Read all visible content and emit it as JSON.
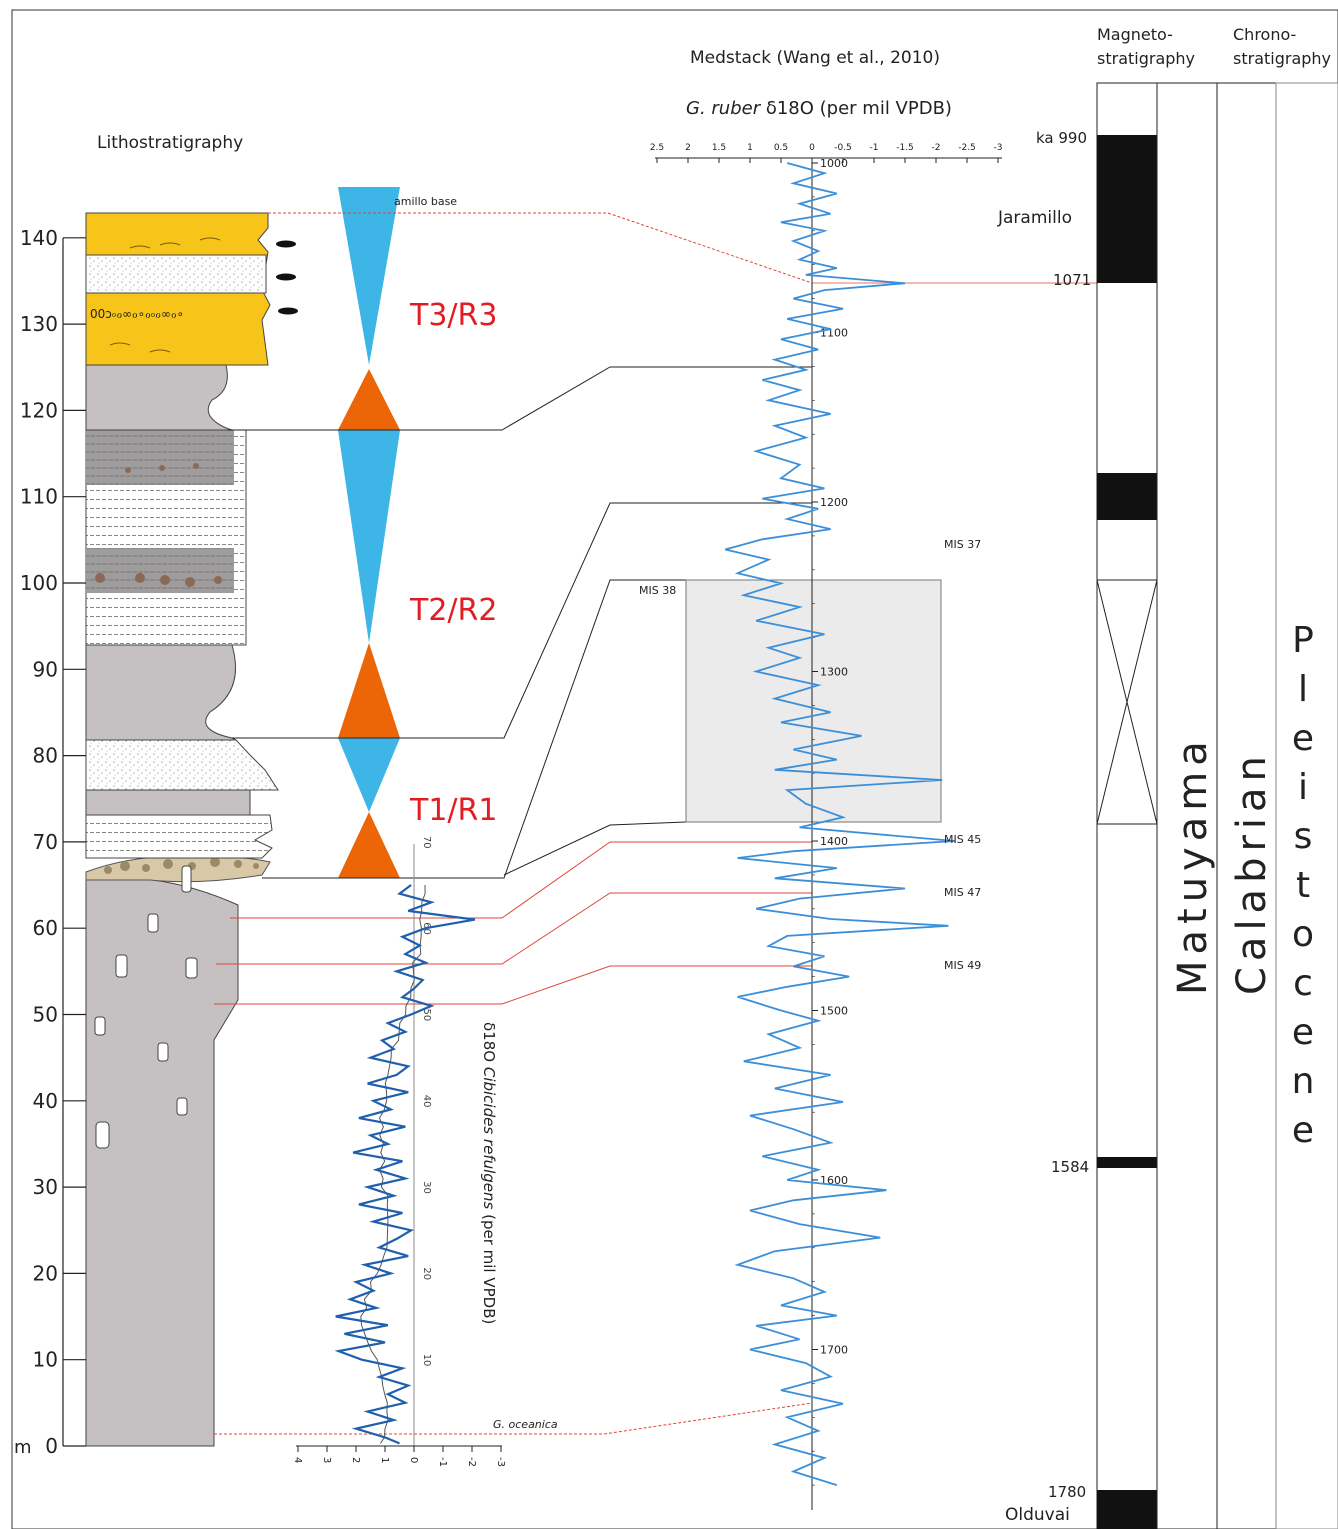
{
  "titles": {
    "lithostratigraphy": "Lithostratigraphy",
    "medstack": "Medstack (Wang et al., 2010)",
    "gruber_italic": "G. ruber",
    "gruber_rest": " δ18O (per mil VPDB)",
    "magneto_1": "Magneto-",
    "magneto_2": "stratigraphy",
    "chrono_1": "Chrono-",
    "chrono_2": "stratigraphy",
    "cib_label_1": "δ18O ",
    "cib_label_italic": "Cibicides refulgens",
    "cib_label_2": " (per mil VPDB)"
  },
  "depth_axis": {
    "unit": "m",
    "ticks": [
      "0",
      "10",
      "20",
      "30",
      "40",
      "50",
      "60",
      "70",
      "80",
      "90",
      "100",
      "110",
      "120",
      "130",
      "140"
    ]
  },
  "sequences": [
    "T3/R3",
    "T2/R2",
    "T1/R1"
  ],
  "jaramillo_base_label": "amillo base",
  "ruber_axis": {
    "ticks": [
      "2.5",
      "2",
      "1.5",
      "1",
      "0.5",
      "0",
      "-0.5",
      "-1",
      "-1.5",
      "-2",
      "-2.5",
      "-3"
    ],
    "age_ticks": [
      "1000",
      "1100",
      "1200",
      "1300",
      "1400",
      "1500",
      "1600",
      "1700"
    ]
  },
  "mis_labels": [
    "MIS 37",
    "MIS 38",
    "MIS 45",
    "MIS 47",
    "MIS 49"
  ],
  "cib_axis": {
    "value_ticks": [
      "4",
      "3",
      "2",
      "1",
      "0",
      "-1",
      "-2",
      "-3"
    ],
    "depth_ticks": [
      "10",
      "20",
      "30",
      "40",
      "50",
      "60",
      "70"
    ]
  },
  "goceanica": "G. oceanica",
  "magneto": {
    "labels": {
      "ka990": "ka 990",
      "jaramillo": "Jaramillo",
      "a1071": "1071",
      "a1584": "1584",
      "a1780": "1780",
      "olduvai": "Olduvai"
    },
    "matuyama": "Matuyama"
  },
  "chrono": {
    "stage": "Calabrian",
    "epoch_letters": [
      "P",
      "l",
      "e",
      "i",
      "s",
      "t",
      "o",
      "c",
      "e",
      "n",
      "e"
    ]
  },
  "colors": {
    "yellow": "#f7c51a",
    "gray": "#c5c1c2",
    "blue_triangle": "#3db5e6",
    "orange_triangle": "#ec6608",
    "red_label": "#e31b23",
    "ruber_curve": "#3b8fd9",
    "cib_curve": "#1f5fae",
    "tie_red": "#e0453a"
  },
  "chart_data": [
    {
      "type": "line",
      "name": "G. ruber δ18O (Medstack)",
      "x_label": "G. ruber δ18O (per mil VPDB)",
      "y_label": "age (ka)",
      "x_range": [
        2.5,
        -3
      ],
      "y_range": [
        1000,
        1780
      ],
      "points": [
        [
          0.4,
          1000
        ],
        [
          -0.2,
          1006
        ],
        [
          0.3,
          1012
        ],
        [
          -0.4,
          1018
        ],
        [
          0.2,
          1024
        ],
        [
          -0.3,
          1030
        ],
        [
          0.5,
          1035
        ],
        [
          -0.2,
          1040
        ],
        [
          0.3,
          1046
        ],
        [
          -0.1,
          1052
        ],
        [
          0.2,
          1057
        ],
        [
          -0.4,
          1062
        ],
        [
          0.1,
          1066
        ],
        [
          -1.5,
          1071
        ],
        [
          -0.2,
          1075
        ],
        [
          0.3,
          1080
        ],
        [
          -0.5,
          1086
        ],
        [
          0.4,
          1092
        ],
        [
          -0.3,
          1098
        ],
        [
          0.5,
          1104
        ],
        [
          -0.1,
          1110
        ],
        [
          0.6,
          1116
        ],
        [
          0.1,
          1122
        ],
        [
          0.8,
          1128
        ],
        [
          0.2,
          1134
        ],
        [
          0.7,
          1140
        ],
        [
          -0.3,
          1148
        ],
        [
          0.6,
          1155
        ],
        [
          0.1,
          1162
        ],
        [
          0.9,
          1170
        ],
        [
          0.2,
          1178
        ],
        [
          0.5,
          1186
        ],
        [
          -0.2,
          1192
        ],
        [
          0.8,
          1198
        ],
        [
          -0.1,
          1204
        ],
        [
          0.4,
          1210
        ],
        [
          -0.3,
          1216
        ],
        [
          0.8,
          1222
        ],
        [
          1.4,
          1228
        ],
        [
          0.7,
          1234
        ],
        [
          1.2,
          1242
        ],
        [
          0.5,
          1248
        ],
        [
          1.1,
          1255
        ],
        [
          0.2,
          1262
        ],
        [
          0.9,
          1270
        ],
        [
          -0.2,
          1278
        ],
        [
          0.7,
          1286
        ],
        [
          0.2,
          1292
        ],
        [
          0.9,
          1300
        ],
        [
          -0.1,
          1308
        ],
        [
          0.6,
          1316
        ],
        [
          -0.3,
          1324
        ],
        [
          0.5,
          1330
        ],
        [
          -0.8,
          1338
        ],
        [
          0.3,
          1346
        ],
        [
          -0.4,
          1352
        ],
        [
          0.6,
          1358
        ],
        [
          -2.1,
          1364
        ],
        [
          0.4,
          1370
        ],
        [
          0.1,
          1378
        ],
        [
          -0.5,
          1386
        ],
        [
          0.2,
          1392
        ],
        [
          -2.3,
          1400
        ],
        [
          0.3,
          1406
        ],
        [
          1.2,
          1410
        ],
        [
          -0.4,
          1416
        ],
        [
          0.6,
          1422
        ],
        [
          -1.5,
          1428
        ],
        [
          0.2,
          1434
        ],
        [
          0.9,
          1440
        ],
        [
          -0.3,
          1446
        ],
        [
          -2.2,
          1450
        ],
        [
          0.4,
          1456
        ],
        [
          0.7,
          1462
        ],
        [
          -0.2,
          1468
        ],
        [
          0.3,
          1474
        ],
        [
          -0.6,
          1480
        ],
        [
          0.4,
          1486
        ],
        [
          1.2,
          1492
        ],
        [
          0.5,
          1500
        ],
        [
          -0.1,
          1506
        ],
        [
          0.7,
          1514
        ],
        [
          0.2,
          1522
        ],
        [
          1.1,
          1530
        ],
        [
          -0.3,
          1538
        ],
        [
          0.6,
          1546
        ],
        [
          -0.5,
          1554
        ],
        [
          1.0,
          1562
        ],
        [
          0.3,
          1570
        ],
        [
          -0.3,
          1578
        ],
        [
          0.8,
          1586
        ],
        [
          -0.1,
          1594
        ],
        [
          0.4,
          1600
        ],
        [
          -1.2,
          1606
        ],
        [
          0.3,
          1612
        ],
        [
          1.0,
          1618
        ],
        [
          0.2,
          1626
        ],
        [
          -1.1,
          1634
        ],
        [
          0.6,
          1642
        ],
        [
          1.2,
          1650
        ],
        [
          0.3,
          1658
        ],
        [
          -0.2,
          1666
        ],
        [
          0.5,
          1674
        ],
        [
          -0.4,
          1680
        ],
        [
          0.9,
          1686
        ],
        [
          0.2,
          1694
        ],
        [
          1.0,
          1700
        ],
        [
          0.1,
          1708
        ],
        [
          -0.3,
          1716
        ],
        [
          0.5,
          1724
        ],
        [
          -0.5,
          1732
        ],
        [
          0.4,
          1740
        ],
        [
          -0.1,
          1748
        ],
        [
          0.6,
          1756
        ],
        [
          -0.2,
          1764
        ],
        [
          0.3,
          1772
        ],
        [
          -0.4,
          1780
        ]
      ]
    },
    {
      "type": "line",
      "name": "δ18O Cibicides refulgens",
      "x_label": "δ18O Cibicides refulgens (per mil VPDB)",
      "y_label": "depth (m)",
      "x_range": [
        4,
        -3
      ],
      "y_range": [
        0,
        70
      ],
      "points": [
        [
          0.5,
          0.3
        ],
        [
          1.0,
          1
        ],
        [
          2.0,
          2
        ],
        [
          0.7,
          3
        ],
        [
          1.6,
          4
        ],
        [
          0.3,
          5
        ],
        [
          0.9,
          6
        ],
        [
          0.2,
          7
        ],
        [
          1.2,
          8
        ],
        [
          0.4,
          9
        ],
        [
          1.8,
          10
        ],
        [
          2.6,
          11
        ],
        [
          1.0,
          12
        ],
        [
          2.4,
          13
        ],
        [
          0.9,
          14
        ],
        [
          2.7,
          15
        ],
        [
          1.3,
          16
        ],
        [
          2.2,
          17
        ],
        [
          1.4,
          18
        ],
        [
          2.0,
          19
        ],
        [
          0.8,
          20
        ],
        [
          1.7,
          21
        ],
        [
          0.2,
          22
        ],
        [
          1.2,
          23
        ],
        [
          0.6,
          24
        ],
        [
          0.1,
          25
        ],
        [
          1.4,
          26
        ],
        [
          0.4,
          27
        ],
        [
          1.9,
          28
        ],
        [
          0.7,
          29
        ],
        [
          1.6,
          30
        ],
        [
          0.3,
          31
        ],
        [
          1.3,
          32
        ],
        [
          0.4,
          33
        ],
        [
          2.1,
          34
        ],
        [
          0.9,
          35
        ],
        [
          1.5,
          36
        ],
        [
          0.3,
          37
        ],
        [
          1.9,
          38
        ],
        [
          0.8,
          39
        ],
        [
          1.4,
          40
        ],
        [
          0.2,
          41
        ],
        [
          1.6,
          42
        ],
        [
          0.6,
          43
        ],
        [
          0.2,
          44
        ],
        [
          1.5,
          45
        ],
        [
          0.7,
          46
        ],
        [
          1.1,
          47
        ],
        [
          0.3,
          48
        ],
        [
          0.9,
          49
        ],
        [
          0.1,
          50
        ],
        [
          -0.6,
          51
        ],
        [
          0.4,
          52
        ],
        [
          0.0,
          53
        ],
        [
          -0.3,
          54
        ],
        [
          0.6,
          55
        ],
        [
          -0.4,
          56
        ],
        [
          0.3,
          57
        ],
        [
          -0.2,
          58
        ],
        [
          0.4,
          59
        ],
        [
          -0.4,
          60
        ],
        [
          -2.1,
          61
        ],
        [
          0.2,
          62
        ],
        [
          -0.6,
          63
        ],
        [
          0.5,
          64
        ],
        [
          0.1,
          65
        ]
      ]
    }
  ]
}
